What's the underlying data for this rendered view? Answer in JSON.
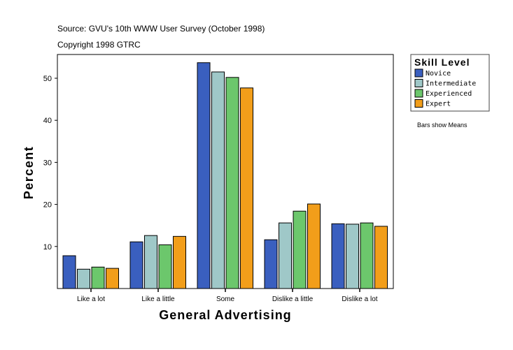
{
  "chart_data": {
    "type": "bar",
    "source_note": "Source: GVU's 10th WWW User Survey (October 1998)",
    "copyright_note": "Copyright 1998 GTRC",
    "xlabel": "General Advertising",
    "ylabel": "Percent",
    "ylim": [
      0,
      55.5
    ],
    "yticks": [
      10,
      20,
      30,
      40,
      50
    ],
    "grid": false,
    "categories": [
      "Like a lot",
      "Like a little",
      "Some",
      "Dislike a little",
      "Dislike a lot"
    ],
    "legend": {
      "title": "Skill Level",
      "placement": "right"
    },
    "footnote": "Bars show Means",
    "series": [
      {
        "name": "Novice",
        "color": "#3a5fbf",
        "values": [
          7.8,
          11.1,
          53.7,
          11.6,
          15.4
        ]
      },
      {
        "name": "Intermediate",
        "color": "#9fc8c8",
        "values": [
          4.6,
          12.6,
          51.5,
          15.6,
          15.3
        ]
      },
      {
        "name": "Experienced",
        "color": "#6cc76c",
        "values": [
          5.1,
          10.4,
          50.2,
          18.4,
          15.6
        ]
      },
      {
        "name": "Expert",
        "color": "#f29e1a",
        "values": [
          4.8,
          12.4,
          47.7,
          20.1,
          14.8
        ]
      }
    ]
  }
}
